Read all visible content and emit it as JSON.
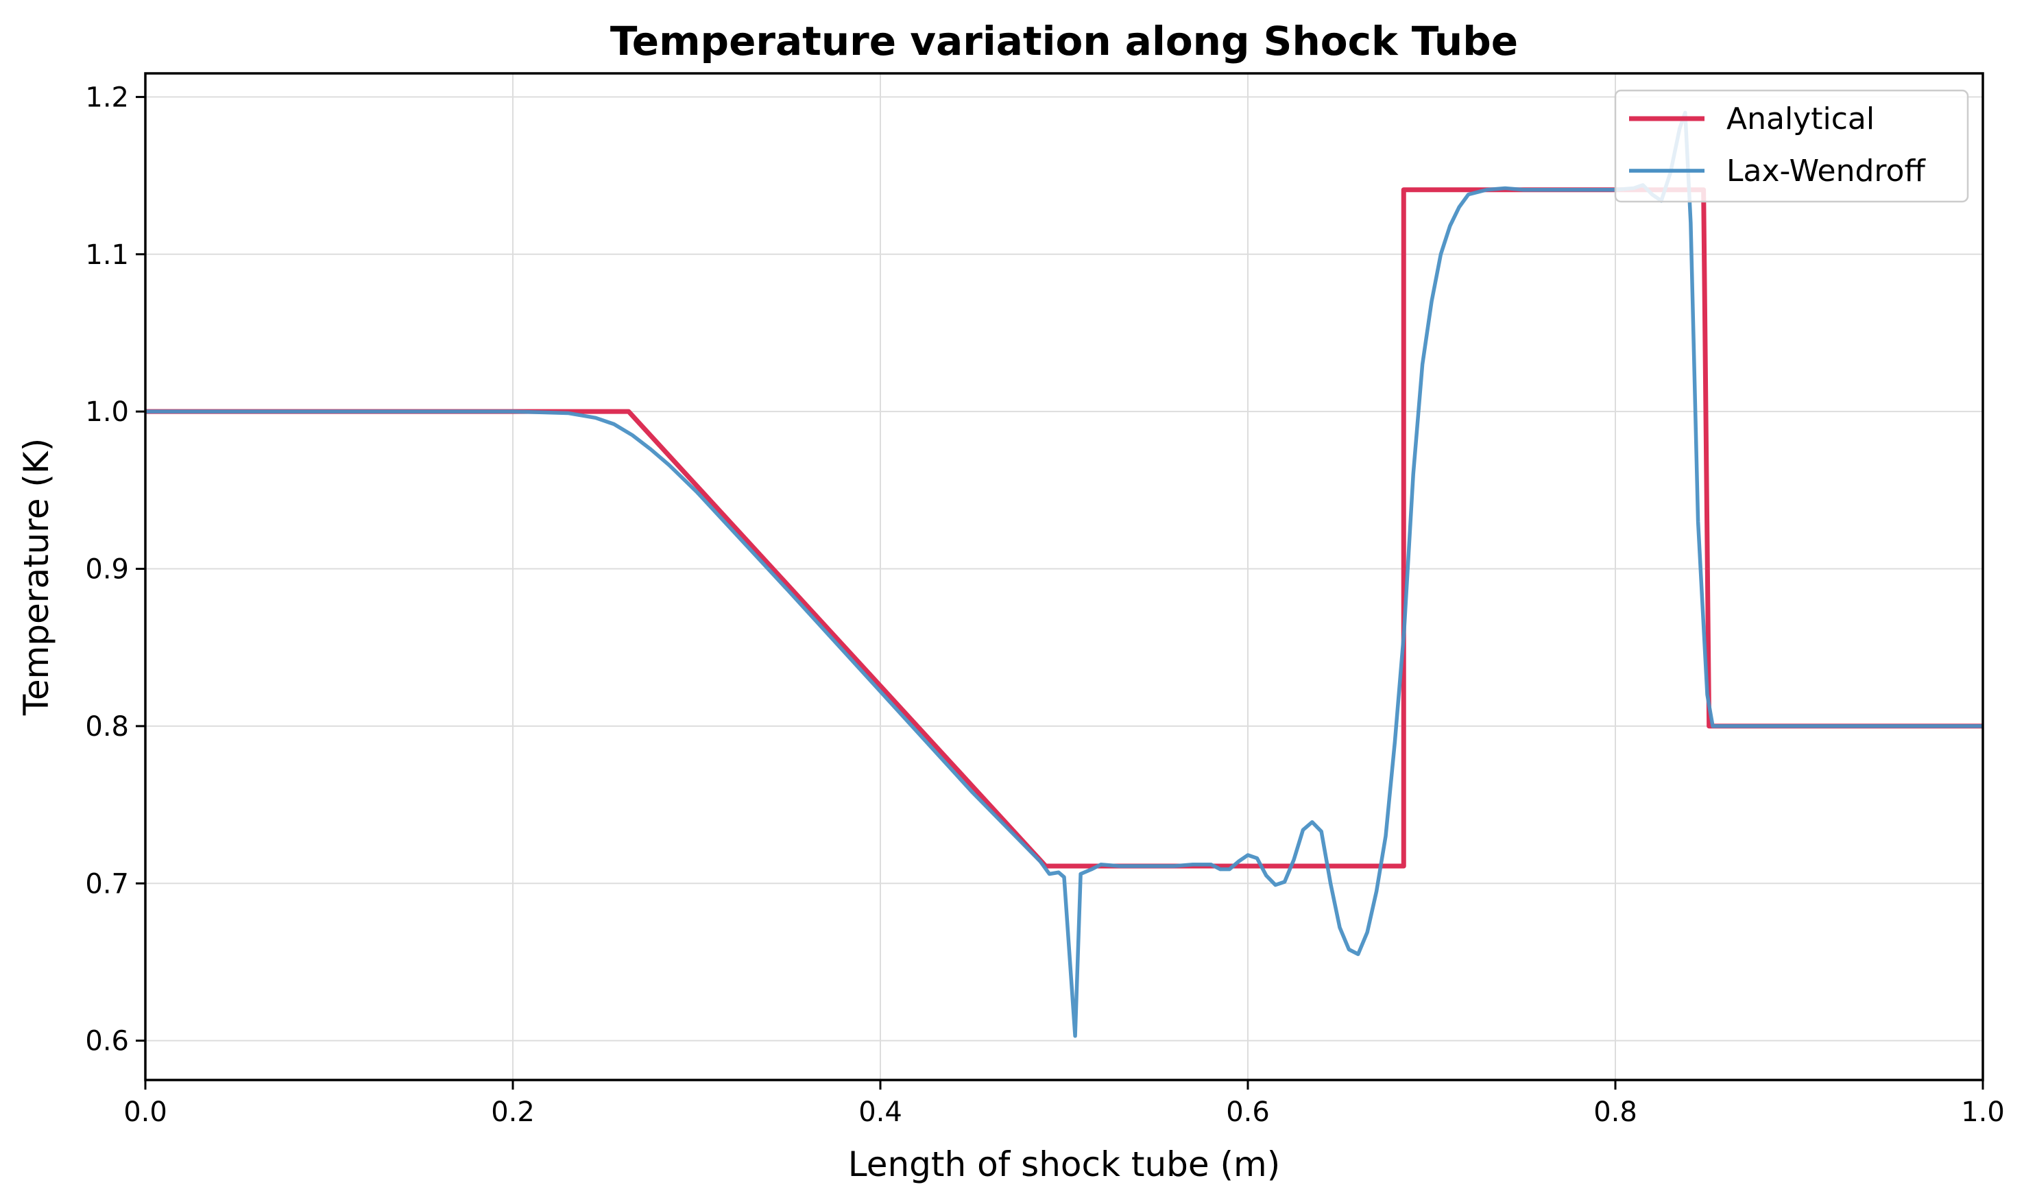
{
  "chart_data": {
    "type": "line",
    "title": "Temperature variation along Shock Tube",
    "xlabel": "Length of shock tube (m)",
    "ylabel": "Temperature (K)",
    "xlim": [
      0.0,
      1.0
    ],
    "ylim": [
      0.575,
      1.215
    ],
    "x_ticks": [
      "0.0",
      "0.2",
      "0.4",
      "0.6",
      "0.8",
      "1.0"
    ],
    "y_ticks": [
      "0.6",
      "0.7",
      "0.8",
      "0.9",
      "1.0",
      "1.1",
      "1.2"
    ],
    "grid": true,
    "legend_position": "top-right",
    "colors": {
      "analytical": "#dc2f55",
      "lax_wendroff": "#4a90c4"
    },
    "series": [
      {
        "name": "Analytical",
        "color": "#dc2f55",
        "x": [
          0.0,
          0.263,
          0.49,
          0.6848,
          0.6848,
          0.848,
          0.851,
          1.0
        ],
        "y": [
          1.0,
          1.0,
          0.711,
          0.711,
          1.141,
          1.141,
          0.8,
          0.8
        ]
      },
      {
        "name": "Lax-Wendroff",
        "color": "#4a90c4",
        "x": [
          0.0,
          0.2,
          0.23,
          0.245,
          0.255,
          0.265,
          0.275,
          0.285,
          0.3,
          0.35,
          0.4,
          0.45,
          0.487,
          0.492,
          0.497,
          0.5,
          0.506,
          0.509,
          0.515,
          0.52,
          0.53,
          0.54,
          0.56,
          0.57,
          0.58,
          0.585,
          0.59,
          0.595,
          0.6,
          0.605,
          0.61,
          0.615,
          0.62,
          0.625,
          0.63,
          0.635,
          0.64,
          0.645,
          0.65,
          0.655,
          0.66,
          0.665,
          0.67,
          0.675,
          0.68,
          0.685,
          0.69,
          0.695,
          0.7,
          0.705,
          0.71,
          0.715,
          0.72,
          0.73,
          0.74,
          0.75,
          0.8,
          0.81,
          0.815,
          0.82,
          0.825,
          0.83,
          0.835,
          0.838,
          0.841,
          0.845,
          0.85,
          0.853,
          0.86,
          0.9,
          0.95,
          1.0
        ],
        "y": [
          1.0,
          1.0,
          0.999,
          0.996,
          0.992,
          0.985,
          0.976,
          0.966,
          0.949,
          0.886,
          0.822,
          0.758,
          0.714,
          0.706,
          0.707,
          0.704,
          0.603,
          0.706,
          0.709,
          0.712,
          0.711,
          0.711,
          0.711,
          0.712,
          0.712,
          0.709,
          0.709,
          0.714,
          0.718,
          0.716,
          0.705,
          0.699,
          0.701,
          0.715,
          0.734,
          0.739,
          0.733,
          0.7,
          0.672,
          0.658,
          0.655,
          0.669,
          0.695,
          0.73,
          0.79,
          0.86,
          0.96,
          1.03,
          1.07,
          1.1,
          1.118,
          1.13,
          1.138,
          1.141,
          1.142,
          1.141,
          1.141,
          1.142,
          1.144,
          1.138,
          1.134,
          1.152,
          1.18,
          1.19,
          1.12,
          0.93,
          0.82,
          0.8,
          0.8,
          0.8,
          0.8,
          0.8
        ]
      }
    ]
  }
}
